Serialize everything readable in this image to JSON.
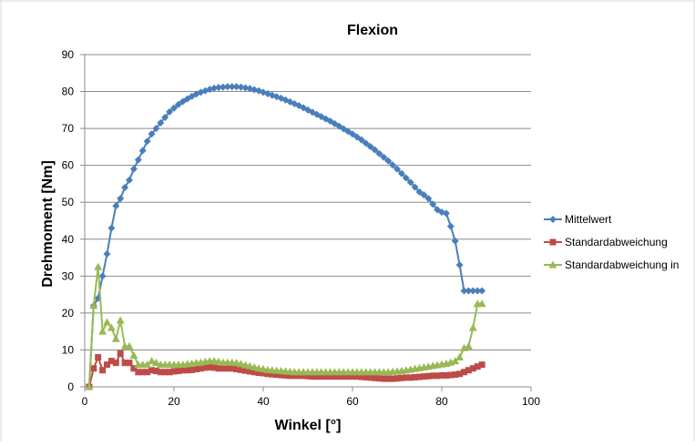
{
  "chart_data": {
    "type": "line",
    "title": "Flexion",
    "xlabel": "Winkel [°]",
    "ylabel": "Drehmoment  [Nm]",
    "xlim": [
      0,
      100
    ],
    "ylim": [
      0,
      90
    ],
    "xticks": [
      0,
      20,
      40,
      60,
      80,
      100
    ],
    "yticks": [
      0,
      10,
      20,
      30,
      40,
      50,
      60,
      70,
      80,
      90
    ],
    "grid": "horizontal",
    "legend_position": "right",
    "series": [
      {
        "name": "Mittelwert",
        "color": "#4a7ebb",
        "marker": "diamond",
        "x": [
          1,
          2,
          3,
          4,
          5,
          6,
          7,
          8,
          9,
          10,
          11,
          12,
          13,
          14,
          15,
          16,
          17,
          18,
          19,
          20,
          21,
          22,
          23,
          24,
          25,
          26,
          27,
          28,
          29,
          30,
          31,
          32,
          33,
          34,
          35,
          36,
          37,
          38,
          39,
          40,
          41,
          42,
          43,
          44,
          45,
          46,
          47,
          48,
          49,
          50,
          51,
          52,
          53,
          54,
          55,
          56,
          57,
          58,
          59,
          60,
          61,
          62,
          63,
          64,
          65,
          66,
          67,
          68,
          69,
          70,
          71,
          72,
          73,
          74,
          75,
          76,
          77,
          78,
          79,
          80,
          81,
          82,
          83,
          84,
          85,
          86,
          87,
          88,
          89
        ],
        "y": [
          0,
          22,
          24,
          30,
          36,
          43,
          49,
          51,
          54,
          56,
          59,
          61.5,
          64,
          66.5,
          68.5,
          70,
          71.5,
          73,
          74.5,
          75.5,
          76.5,
          77.3,
          78,
          78.7,
          79.3,
          79.8,
          80.2,
          80.6,
          80.9,
          81.1,
          81.2,
          81.3,
          81.3,
          81.3,
          81.2,
          81,
          80.8,
          80.5,
          80.2,
          79.8,
          79.4,
          79,
          78.6,
          78.2,
          77.7,
          77.2,
          76.7,
          76.2,
          75.6,
          75,
          74.4,
          73.8,
          73.2,
          72.6,
          72,
          71.3,
          70.6,
          69.9,
          69.2,
          68.5,
          67.7,
          66.9,
          66,
          65.1,
          64.2,
          63.2,
          62.2,
          61.2,
          60.1,
          59,
          57.8,
          56.6,
          55.4,
          54.1,
          52.8,
          52,
          51,
          49.5,
          48,
          47.3,
          47,
          43.5,
          39.5,
          33,
          26,
          26,
          26,
          26,
          26
        ],
        "note": ""
      },
      {
        "name": "Standardabweichung",
        "color": "#be4b48",
        "marker": "square",
        "x": [
          1,
          2,
          3,
          4,
          5,
          6,
          7,
          8,
          9,
          10,
          11,
          12,
          13,
          14,
          15,
          16,
          17,
          18,
          19,
          20,
          21,
          22,
          23,
          24,
          25,
          26,
          27,
          28,
          29,
          30,
          31,
          32,
          33,
          34,
          35,
          36,
          37,
          38,
          39,
          40,
          41,
          42,
          43,
          44,
          45,
          46,
          47,
          48,
          49,
          50,
          51,
          52,
          53,
          54,
          55,
          56,
          57,
          58,
          59,
          60,
          61,
          62,
          63,
          64,
          65,
          66,
          67,
          68,
          69,
          70,
          71,
          72,
          73,
          74,
          75,
          76,
          77,
          78,
          79,
          80,
          81,
          82,
          83,
          84,
          85,
          86,
          87,
          88,
          89
        ],
        "y": [
          0,
          5,
          8,
          4.5,
          6,
          7,
          6.5,
          9,
          6.5,
          6.5,
          5,
          4,
          4,
          4,
          4.5,
          4.3,
          4,
          4,
          4,
          4.2,
          4.3,
          4.5,
          4.5,
          4.6,
          4.8,
          5,
          5.2,
          5.3,
          5.2,
          5,
          5,
          5,
          5,
          4.8,
          4.6,
          4.4,
          4.2,
          4,
          3.8,
          3.7,
          3.5,
          3.4,
          3.3,
          3.2,
          3.1,
          3,
          3,
          3,
          3,
          2.9,
          2.8,
          2.8,
          2.8,
          2.8,
          2.8,
          2.8,
          2.8,
          2.8,
          2.8,
          2.8,
          2.8,
          2.7,
          2.6,
          2.5,
          2.4,
          2.3,
          2.2,
          2.2,
          2.2,
          2.3,
          2.4,
          2.5,
          2.5,
          2.6,
          2.7,
          2.8,
          2.9,
          3,
          3,
          3.1,
          3.1,
          3.2,
          3.3,
          3.5,
          4,
          4.5,
          5,
          5.5,
          6
        ],
        "note": ""
      },
      {
        "name": "Standardabweichung in",
        "color": "#98b954",
        "marker": "triangle",
        "x": [
          1,
          2,
          3,
          4,
          5,
          6,
          7,
          8,
          9,
          10,
          11,
          12,
          13,
          14,
          15,
          16,
          17,
          18,
          19,
          20,
          21,
          22,
          23,
          24,
          25,
          26,
          27,
          28,
          29,
          30,
          31,
          32,
          33,
          34,
          35,
          36,
          37,
          38,
          39,
          40,
          41,
          42,
          43,
          44,
          45,
          46,
          47,
          48,
          49,
          50,
          51,
          52,
          53,
          54,
          55,
          56,
          57,
          58,
          59,
          60,
          61,
          62,
          63,
          64,
          65,
          66,
          67,
          68,
          69,
          70,
          71,
          72,
          73,
          74,
          75,
          76,
          77,
          78,
          79,
          80,
          81,
          82,
          83,
          84,
          85,
          86,
          87,
          88,
          89
        ],
        "y": [
          0,
          22,
          32.5,
          15,
          17.5,
          16,
          13,
          18,
          11,
          11,
          8.5,
          6,
          6,
          6,
          7,
          6.5,
          6,
          6,
          6,
          6,
          6,
          6,
          6.2,
          6.3,
          6.5,
          6.6,
          6.8,
          7,
          7,
          6.8,
          6.6,
          6.6,
          6.6,
          6.5,
          6.2,
          5.9,
          5.6,
          5.3,
          5,
          4.8,
          4.6,
          4.5,
          4.4,
          4.3,
          4.2,
          4.1,
          4,
          4,
          4,
          4,
          4,
          4,
          4,
          4,
          4,
          4,
          4,
          4,
          4,
          4,
          4,
          4,
          4,
          4,
          4,
          4,
          4,
          4,
          4.1,
          4.2,
          4.3,
          4.5,
          4.7,
          4.9,
          5.1,
          5.3,
          5.5,
          5.7,
          5.9,
          6.1,
          6.3,
          6.6,
          7,
          8,
          10.5,
          11,
          16,
          22.5,
          22.5
        ],
        "note": ""
      }
    ]
  }
}
